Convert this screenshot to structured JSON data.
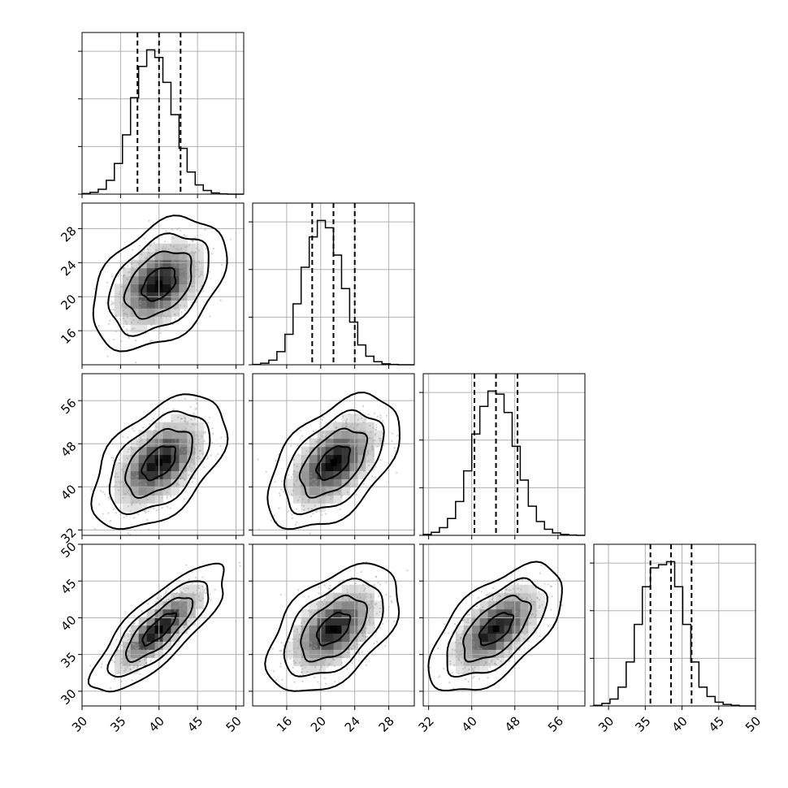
{
  "chart_data": {
    "type": "corner",
    "variables": [
      {
        "range": [
          30,
          51
        ],
        "ticks": [
          30,
          35,
          40,
          45,
          50
        ],
        "tick_labels": [
          "30",
          "35",
          "40",
          "45",
          "50"
        ],
        "mean": 40,
        "sd": 2.8
      },
      {
        "range": [
          12,
          31
        ],
        "ticks": [
          16,
          20,
          24,
          28
        ],
        "tick_labels": [
          "16",
          "20",
          "24",
          "28"
        ],
        "mean": 21.5,
        "sd": 2.5
      },
      {
        "range": [
          31,
          61
        ],
        "ticks": [
          32,
          40,
          48,
          56
        ],
        "tick_labels": [
          "32",
          "40",
          "48",
          "56"
        ],
        "mean": 44.5,
        "sd": 4.0
      },
      {
        "range": [
          28,
          50
        ],
        "ticks": [
          30,
          35,
          40,
          45,
          50
        ],
        "tick_labels": [
          "30",
          "35",
          "40",
          "45",
          "50"
        ],
        "mean": 38.5,
        "sd": 2.8
      }
    ],
    "diagonal_histograms": [
      {
        "bins": [
          30.0,
          31.05,
          32.1,
          33.15,
          34.2,
          35.25,
          36.3,
          37.35,
          38.4,
          39.45,
          40.5,
          41.55,
          42.6,
          43.65,
          44.7,
          45.75,
          46.8,
          47.85,
          48.9,
          49.95,
          51.0
        ],
        "counts": [
          2,
          6,
          16,
          45,
          100,
          193,
          314,
          416,
          470,
          445,
          364,
          259,
          149,
          72,
          30,
          12,
          4,
          1,
          0,
          0
        ],
        "quantiles": [
          37.2,
          40.0,
          42.8
        ]
      },
      {
        "bins": [
          12.0,
          12.95,
          13.9,
          14.85,
          15.8,
          16.75,
          17.7,
          18.65,
          19.6,
          20.55,
          21.5,
          22.45,
          23.4,
          24.35,
          25.3,
          26.25,
          27.2,
          28.15,
          29.1,
          30.05,
          31.0
        ],
        "counts": [
          1,
          5,
          15,
          43,
          100,
          200,
          320,
          420,
          474,
          450,
          360,
          250,
          140,
          65,
          28,
          10,
          3,
          1,
          0,
          0
        ],
        "quantiles": [
          19.0,
          21.5,
          24.0
        ]
      },
      {
        "bins": [
          31.0,
          32.5,
          34.0,
          35.5,
          37.0,
          38.5,
          40.0,
          41.5,
          43.0,
          44.5,
          46.0,
          47.5,
          49.0,
          50.5,
          52.0,
          53.5,
          55.0,
          56.5,
          58.0,
          59.5,
          61.0
        ],
        "counts": [
          3,
          10,
          25,
          55,
          110,
          210,
          330,
          420,
          470,
          460,
          400,
          290,
          180,
          95,
          45,
          20,
          8,
          3,
          1,
          0
        ],
        "quantiles": [
          40.5,
          44.5,
          48.5
        ]
      },
      {
        "bins": [
          28.0,
          29.1,
          30.2,
          31.3,
          32.4,
          33.5,
          34.6,
          35.7,
          36.8,
          37.9,
          39.0,
          40.1,
          41.2,
          42.3,
          43.4,
          44.5,
          45.6,
          46.7,
          47.8,
          48.9,
          50.0
        ],
        "counts": [
          2,
          8,
          22,
          60,
          140,
          260,
          380,
          440,
          450,
          460,
          380,
          260,
          140,
          60,
          30,
          12,
          5,
          2,
          0,
          0
        ],
        "quantiles": [
          35.7,
          38.5,
          41.3
        ]
      }
    ],
    "pairs": [
      {
        "row": 1,
        "col": 0,
        "rho": 0.4
      },
      {
        "row": 2,
        "col": 0,
        "rho": 0.5
      },
      {
        "row": 2,
        "col": 1,
        "rho": 0.5
      },
      {
        "row": 3,
        "col": 0,
        "rho": 0.8
      },
      {
        "row": 3,
        "col": 1,
        "rho": 0.5
      },
      {
        "row": 3,
        "col": 2,
        "rho": 0.6
      }
    ],
    "contour_levels_sigma": [
      0.5,
      1.0,
      1.5,
      2.0
    ],
    "grid": true
  }
}
